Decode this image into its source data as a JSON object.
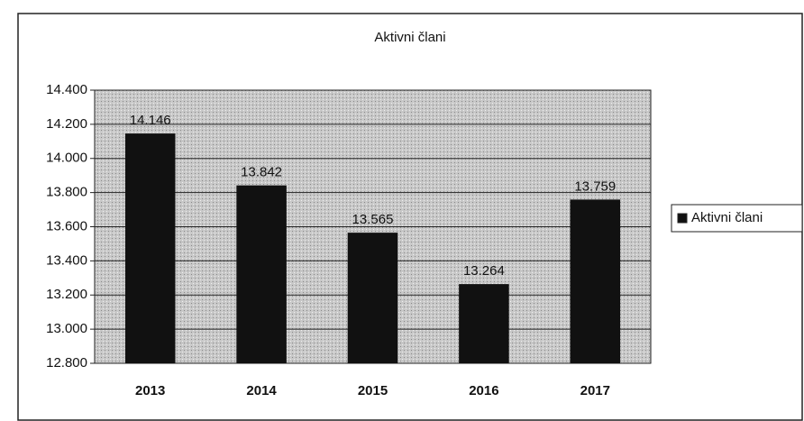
{
  "chart_data": {
    "type": "bar",
    "title": "Aktivni člani",
    "categories": [
      "2013",
      "2014",
      "2015",
      "2016",
      "2017"
    ],
    "series": [
      {
        "name": "Aktivni člani",
        "color": "#111111",
        "values": [
          14146,
          13842,
          13565,
          13264,
          13759
        ],
        "value_labels": [
          "14.146",
          "13.842",
          "13.565",
          "13.264",
          "13.759"
        ]
      }
    ],
    "ylim": [
      12800,
      14400
    ],
    "yticks": [
      {
        "value": 12800,
        "label": "12.800"
      },
      {
        "value": 13000,
        "label": "13.000"
      },
      {
        "value": 13200,
        "label": "13.200"
      },
      {
        "value": 13400,
        "label": "13.400"
      },
      {
        "value": 13600,
        "label": "13.600"
      },
      {
        "value": 13800,
        "label": "13.800"
      },
      {
        "value": 14000,
        "label": "14.000"
      },
      {
        "value": 14200,
        "label": "14.200"
      },
      {
        "value": 14400,
        "label": "14.400"
      }
    ],
    "grid": true,
    "legend": "right"
  }
}
